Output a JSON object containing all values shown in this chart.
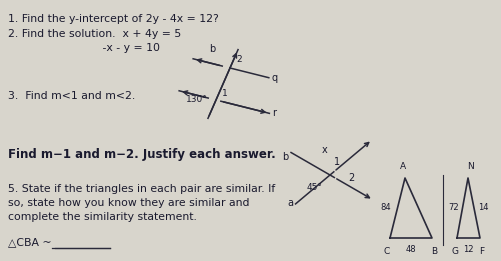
{
  "bg_color": "#d8d4cc",
  "fg_color": "#1a1a2e",
  "fig_width": 5.01,
  "fig_height": 2.61,
  "dpi": 100,
  "q1": "1. Find the y-intercept of 2y - 4x = 12?",
  "q2a": "2. Find the solution.  x + 4y = 5",
  "q2b": "                           -x - y = 10",
  "q3": "3.  Find m<1 and m<2.",
  "q4": "Find m−1 and m−2. Justify each answer.",
  "q5a": "5. State if the triangles in each pair are similar. If",
  "q5b": "so, state how you know they are similar and",
  "q5c": "complete the similarity statement.",
  "q5d": "△CBA ~",
  "line_color": "#2a2a3a",
  "text_fs": 7.8,
  "bold_fs": 8.5
}
